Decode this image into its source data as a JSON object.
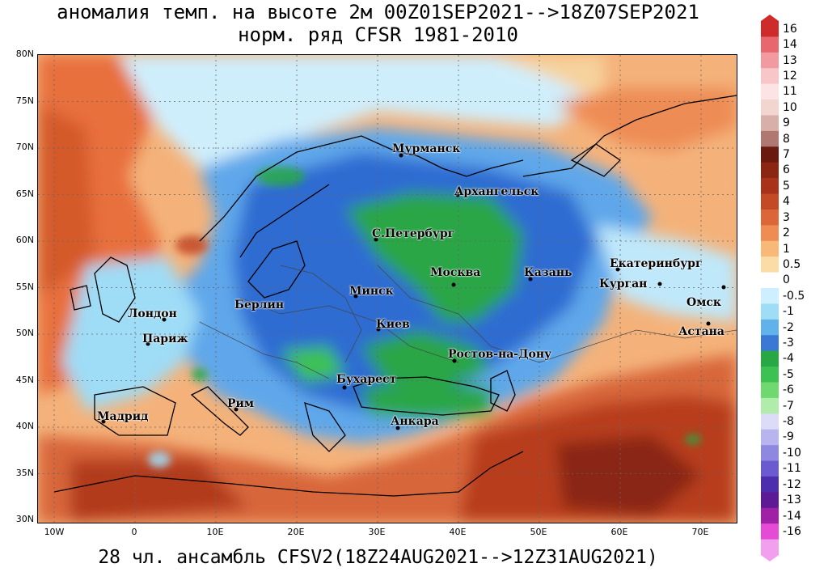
{
  "title_line1": "аномалия темп. на высоте 2м 00Z01SEP2021-->18Z07SEP2021",
  "title_line2": "норм. ряд CFSR 1981-2010",
  "footer": "28 чл. ансамбль CFSV2(18Z24AUG2021-->12Z31AUG2021)",
  "lat_labels": [
    "80N",
    "75N",
    "70N",
    "65N",
    "60N",
    "55N",
    "50N",
    "45N",
    "40N",
    "35N",
    "30N"
  ],
  "lon_labels": [
    "10W",
    "0",
    "10E",
    "20E",
    "30E",
    "40E",
    "50E",
    "60E",
    "70E"
  ],
  "cities": [
    {
      "name": "Мурманск"
    },
    {
      "name": "Архангельск"
    },
    {
      "name": "С.Петербург"
    },
    {
      "name": "Москва"
    },
    {
      "name": "Казань"
    },
    {
      "name": "Екатеринбург"
    },
    {
      "name": "Курган"
    },
    {
      "name": "Омск"
    },
    {
      "name": "Астана"
    },
    {
      "name": "Минск"
    },
    {
      "name": "Берлин"
    },
    {
      "name": "Лондон"
    },
    {
      "name": "Париж"
    },
    {
      "name": "Киев"
    },
    {
      "name": "Ростов-на-Дону"
    },
    {
      "name": "Бухарест"
    },
    {
      "name": "Рим"
    },
    {
      "name": "Мадрид"
    },
    {
      "name": "Анкара"
    }
  ],
  "legend": {
    "labels": [
      "16",
      "14",
      "13",
      "12",
      "11",
      "10",
      "9",
      "8",
      "7",
      "6",
      "5",
      "4",
      "3",
      "2",
      "1",
      "0.5",
      "0",
      "-0.5",
      "-1",
      "-2",
      "-3",
      "-4",
      "-5",
      "-6",
      "-7",
      "-8",
      "-9",
      "-10",
      "-11",
      "-12",
      "-13",
      "-14",
      "-16"
    ],
    "colors": [
      "#d02b2b",
      "#e8676e",
      "#f39aa0",
      "#f8c6c8",
      "#fde4e4",
      "#f3d5cf",
      "#d8b0a8",
      "#b07870",
      "#6b1a10",
      "#8a2612",
      "#a8331a",
      "#c44a26",
      "#dc6638",
      "#ee8c54",
      "#f8b878",
      "#fbdca6",
      "#ffffff",
      "#cdefff",
      "#9fdcf6",
      "#61b2ea",
      "#3b78d6",
      "#27a845",
      "#3cc152",
      "#6fd86f",
      "#b0ecaa",
      "#dcdcf8",
      "#b8b4ef",
      "#8f88e0",
      "#6c5ad0",
      "#4b2dae",
      "#5e1a95",
      "#a020a6",
      "#e64bd8",
      "#f39ff0"
    ]
  }
}
